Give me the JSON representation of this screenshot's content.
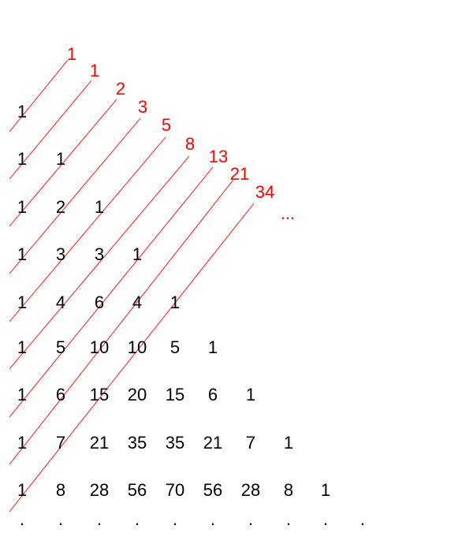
{
  "triangle_rows": [
    [
      "1"
    ],
    [
      "1",
      "1"
    ],
    [
      "1",
      "2",
      "1"
    ],
    [
      "1",
      "3",
      "3",
      "1"
    ],
    [
      "1",
      "4",
      "6",
      "4",
      "1"
    ],
    [
      "1",
      "5",
      "10",
      "10",
      "5",
      "1"
    ],
    [
      "1",
      "6",
      "15",
      "20",
      "15",
      "6",
      "1"
    ],
    [
      "1",
      "7",
      "21",
      "35",
      "35",
      "21",
      "7",
      "1"
    ],
    [
      "1",
      "8",
      "28",
      "56",
      "70",
      "56",
      "28",
      "8",
      "1"
    ]
  ],
  "continuation_dots": [
    ".",
    ".",
    ".",
    ".",
    ".",
    ".",
    ".",
    ".",
    ".",
    "."
  ],
  "diagonal_sums": [
    "1",
    "1",
    "2",
    "3",
    "5",
    "8",
    "13",
    "21",
    "34"
  ],
  "sums_ellipsis": "...",
  "colors": {
    "numbers": "#000000",
    "diagonals": "#ff0000",
    "sums": "#ff0000"
  }
}
